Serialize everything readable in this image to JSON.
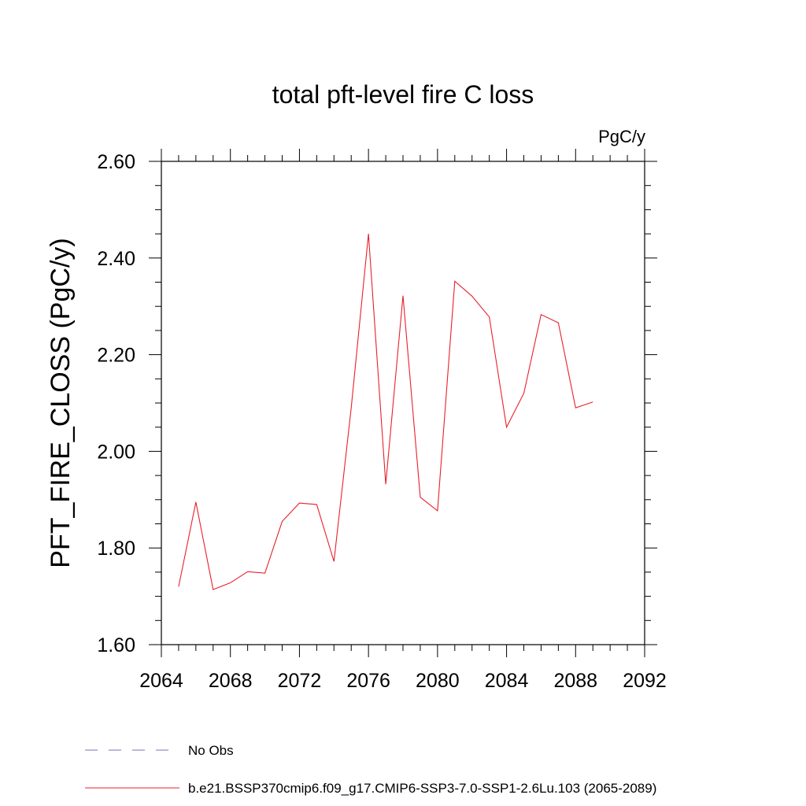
{
  "chart_data": {
    "type": "line",
    "title": "total pft-level fire C loss",
    "units": "PgC/y",
    "ylabel": "PFT_FIRE_CLOSS  (PgC/y)",
    "xlabel": "",
    "xlim": [
      2064,
      2092
    ],
    "ylim": [
      1.6,
      2.6
    ],
    "x_ticks": [
      "2064",
      "2068",
      "2072",
      "2076",
      "2080",
      "2084",
      "2088",
      "2092"
    ],
    "y_ticks": [
      "1.60",
      "1.80",
      "2.00",
      "2.20",
      "2.40",
      "2.60"
    ],
    "grid": false,
    "legend_position": "bottom",
    "legend": [
      {
        "label": "No Obs",
        "style": "dashed",
        "color": "#7b6fb0"
      },
      {
        "label": "b.e21.BSSP370cmip6.f09_g17.CMIP6-SSP3-7.0-SSP1-2.6Lu.103 (2065-2089)",
        "style": "solid",
        "color": "#e8202a"
      }
    ],
    "series": [
      {
        "color": "#e8202a",
        "x": [
          2065,
          2066,
          2067,
          2068,
          2069,
          2070,
          2071,
          2072,
          2073,
          2074,
          2075,
          2076,
          2077,
          2078,
          2079,
          2080,
          2081,
          2082,
          2083,
          2084,
          2085,
          2086,
          2087,
          2088,
          2089
        ],
        "y": [
          1.72,
          1.895,
          1.714,
          1.728,
          1.751,
          1.748,
          1.855,
          1.893,
          1.89,
          1.772,
          2.09,
          2.45,
          1.932,
          2.322,
          1.905,
          1.877,
          2.352,
          2.321,
          2.278,
          2.05,
          2.12,
          2.283,
          2.266,
          2.09,
          2.102
        ]
      }
    ]
  }
}
